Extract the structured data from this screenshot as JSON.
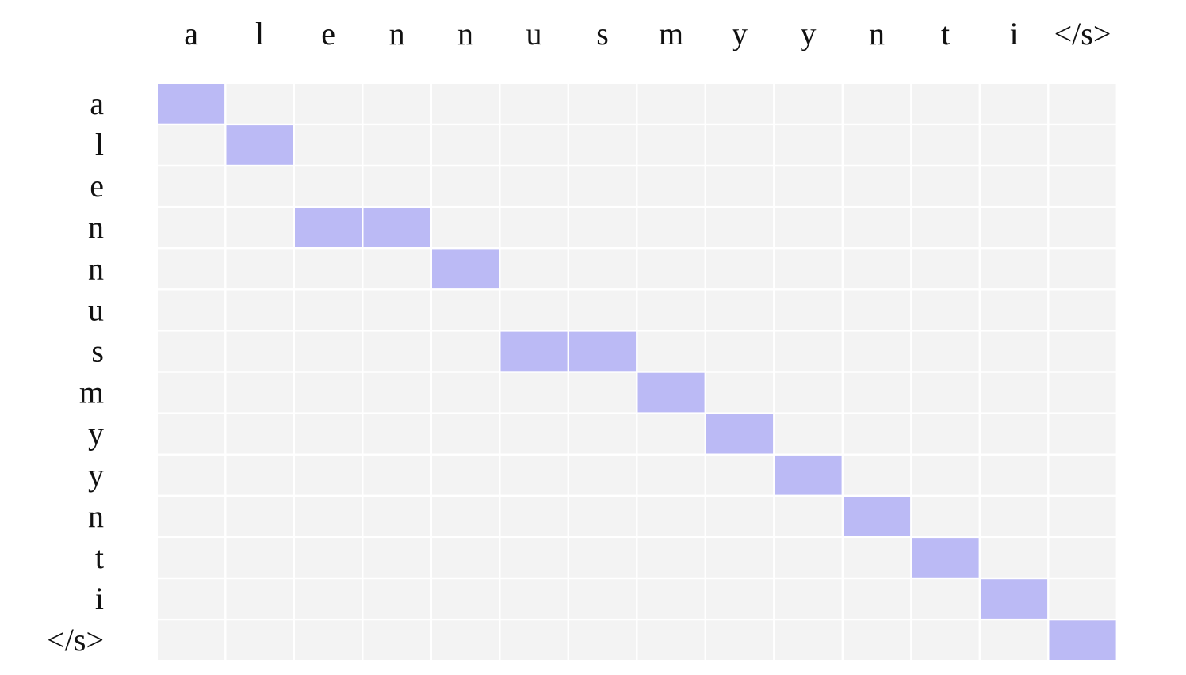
{
  "chart_data": {
    "type": "heatmap",
    "x_labels": [
      "a",
      "l",
      "e",
      "n",
      "n",
      "u",
      "s",
      "m",
      "y",
      "y",
      "n",
      "t",
      "i",
      "</s>"
    ],
    "y_labels": [
      "a",
      "l",
      "e",
      "n",
      "n",
      "u",
      "s",
      "m",
      "y",
      "y",
      "n",
      "t",
      "i",
      "</s>"
    ],
    "matrix": [
      [
        1,
        0,
        0,
        0,
        0,
        0,
        0,
        0,
        0,
        0,
        0,
        0,
        0,
        0
      ],
      [
        0,
        1,
        0,
        0,
        0,
        0,
        0,
        0,
        0,
        0,
        0,
        0,
        0,
        0
      ],
      [
        0,
        0,
        0,
        0,
        0,
        0,
        0,
        0,
        0,
        0,
        0,
        0,
        0,
        0
      ],
      [
        0,
        0,
        1,
        1,
        0,
        0,
        0,
        0,
        0,
        0,
        0,
        0,
        0,
        0
      ],
      [
        0,
        0,
        0,
        0,
        1,
        0,
        0,
        0,
        0,
        0,
        0,
        0,
        0,
        0
      ],
      [
        0,
        0,
        0,
        0,
        0,
        0,
        0,
        0,
        0,
        0,
        0,
        0,
        0,
        0
      ],
      [
        0,
        0,
        0,
        0,
        0,
        1,
        1,
        0,
        0,
        0,
        0,
        0,
        0,
        0
      ],
      [
        0,
        0,
        0,
        0,
        0,
        0,
        0,
        1,
        0,
        0,
        0,
        0,
        0,
        0
      ],
      [
        0,
        0,
        0,
        0,
        0,
        0,
        0,
        0,
        1,
        0,
        0,
        0,
        0,
        0
      ],
      [
        0,
        0,
        0,
        0,
        0,
        0,
        0,
        0,
        0,
        1,
        0,
        0,
        0,
        0
      ],
      [
        0,
        0,
        0,
        0,
        0,
        0,
        0,
        0,
        0,
        0,
        1,
        0,
        0,
        0
      ],
      [
        0,
        0,
        0,
        0,
        0,
        0,
        0,
        0,
        0,
        0,
        0,
        1,
        0,
        0
      ],
      [
        0,
        0,
        0,
        0,
        0,
        0,
        0,
        0,
        0,
        0,
        0,
        0,
        1,
        0
      ],
      [
        0,
        0,
        0,
        0,
        0,
        0,
        0,
        0,
        0,
        0,
        0,
        0,
        0,
        1
      ]
    ],
    "x_label_position": "top",
    "y_label_position": "left",
    "colors": {
      "active": "#bbbaf5",
      "inactive": "#f3f3f3",
      "gridline": "#ffffff"
    }
  }
}
